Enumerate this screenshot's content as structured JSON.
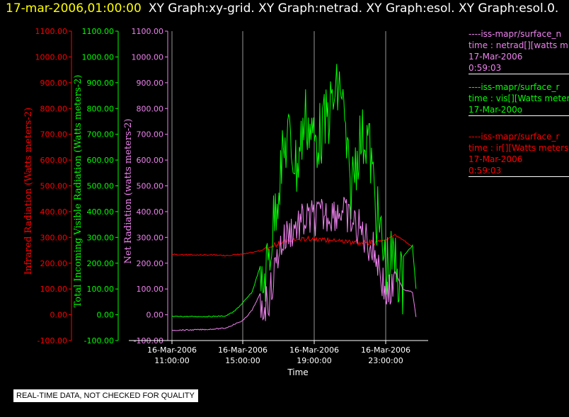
{
  "header": {
    "time": "17-mar-2006,01:00:00",
    "graphs": "XY Graph:xy-grid.  XY Graph:netrad.  XY Graph:esol.  XY Graph:esol.0."
  },
  "footer": {
    "note": "REAL-TIME DATA, NOT CHECKED FOR QUALITY"
  },
  "legend": [
    {
      "lines": [
        "----iss-mapr/surface_n",
        "time : netrad[][watts m",
        "17-Mar-2006",
        "0:59:03"
      ],
      "color": "#ee82ee"
    },
    {
      "lines": [
        "----iss-mapr/surface_r",
        "time : vis[][Watts meter",
        "17-Mar-200o"
      ],
      "color": "#00ff00"
    },
    {
      "lines": [
        "----iss-mapr/surface_r",
        "time : ir[][Watts meters",
        "17-Mar-2006",
        "0:59:03"
      ],
      "color": "#ff0000"
    }
  ],
  "colors": {
    "ir": "#ff0000",
    "vis": "#00ff00",
    "net": "#ee82ee",
    "grid": "#ffffff",
    "background": "#000000"
  },
  "chart_data": {
    "type": "line",
    "xlabel": "Time",
    "x_ticks": [
      "16-Mar-2006 11:00:00",
      "16-Mar-2006 15:00:00",
      "16-Mar-2006 19:00:00",
      "16-Mar-2006 23:00:00"
    ],
    "xlim": [
      "16-Mar-2006 11:00",
      "17-Mar-2006 01:00"
    ],
    "ylim": [
      -100,
      1100
    ],
    "y_ticks": [
      -100,
      0,
      100,
      200,
      300,
      400,
      500,
      600,
      700,
      800,
      900,
      1000,
      1100
    ],
    "y_axes": [
      {
        "label": "Infrared Radiation (Watts meters-2)",
        "color": "#ff0000"
      },
      {
        "label": "Total Incoming Visible Radiation (Watts meters-2)",
        "color": "#00ff00"
      },
      {
        "label": "Net Radiation (watts meters-2)",
        "color": "#ee82ee"
      }
    ],
    "grid": "vertical lines at x ticks",
    "series": [
      {
        "name": "ir",
        "color": "#ff0000",
        "x": [
          "11:00",
          "12:00",
          "13:00",
          "14:00",
          "15:00",
          "16:00",
          "16:30",
          "17:00",
          "18:00",
          "19:00",
          "20:00",
          "21:00",
          "22:00",
          "23:00",
          "23:30",
          "24:00",
          "24:30"
        ],
        "y": [
          235,
          233,
          233,
          231,
          236,
          250,
          268,
          283,
          295,
          300,
          292,
          287,
          282,
          290,
          312,
          290,
          265
        ]
      },
      {
        "name": "vis",
        "color": "#00ff00",
        "x": [
          "11:00",
          "12:00",
          "13:00",
          "14:00",
          "14:30",
          "15:00",
          "15:30",
          "16:00",
          "16:30",
          "17:00",
          "17:30",
          "18:00",
          "18:30",
          "19:00",
          "19:30",
          "20:00",
          "20:30",
          "21:00",
          "21:30",
          "22:00",
          "22:30",
          "23:00",
          "23:30",
          "24:00",
          "24:30",
          "24:45"
        ],
        "y": [
          -5,
          -5,
          -5,
          -3,
          15,
          50,
          90,
          200,
          380,
          650,
          830,
          700,
          900,
          800,
          850,
          950,
          1020,
          600,
          800,
          830,
          520,
          320,
          340,
          230,
          270,
          60
        ]
      },
      {
        "name": "netrad",
        "color": "#ee82ee",
        "x": [
          "11:00",
          "12:00",
          "13:00",
          "14:00",
          "14:30",
          "15:00",
          "15:30",
          "16:00",
          "16:30",
          "17:00",
          "17:30",
          "18:00",
          "18:30",
          "19:00",
          "19:30",
          "20:00",
          "20:30",
          "21:00",
          "21:30",
          "22:00",
          "22:30",
          "23:00",
          "23:30",
          "24:00",
          "24:30",
          "24:45"
        ],
        "y": [
          -58,
          -57,
          -55,
          -50,
          -35,
          -20,
          20,
          90,
          150,
          330,
          390,
          420,
          440,
          450,
          460,
          470,
          480,
          440,
          410,
          360,
          300,
          150,
          170,
          100,
          90,
          -30
        ]
      }
    ]
  }
}
